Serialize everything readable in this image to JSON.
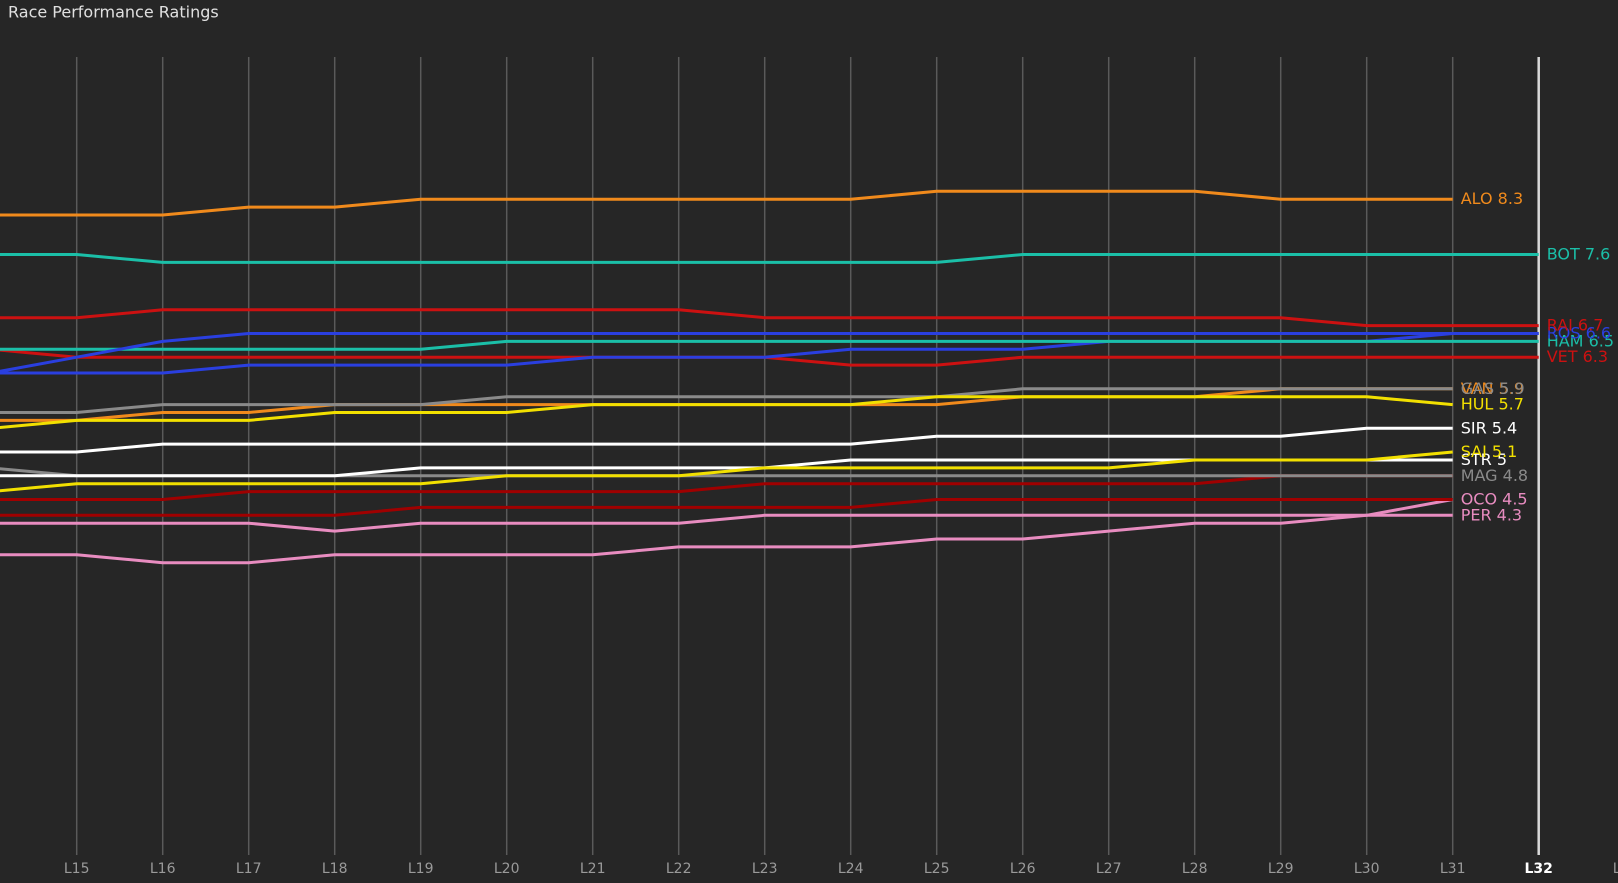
{
  "chart_data": {
    "type": "line",
    "title": "Race Performance Ratings",
    "categories": [
      null,
      "L15",
      "L16",
      "L17",
      "L18",
      "L19",
      "L20",
      "L21",
      "L22",
      "L23",
      "L24",
      "L25",
      "L26",
      "L27",
      "L28",
      "L29",
      "L30",
      "L31",
      "L32",
      "L"
    ],
    "highlight_category": "L32",
    "ylim": [
      0,
      10.1
    ],
    "grid": true,
    "series": [
      {
        "name": "PER",
        "color": "#e88cc0",
        "values": [
          4.2,
          4.2,
          4.2,
          4.2,
          4.1,
          4.2,
          4.2,
          4.2,
          4.2,
          4.3,
          4.3,
          4.3,
          4.3,
          4.3,
          4.3,
          4.3,
          4.3,
          4.3,
          null,
          null
        ]
      },
      {
        "name": "OCO",
        "color": "#e88cc0",
        "values": [
          3.8,
          3.8,
          3.7,
          3.7,
          3.8,
          3.8,
          3.8,
          3.8,
          3.9,
          3.9,
          3.9,
          4.0,
          4.0,
          4.1,
          4.2,
          4.2,
          4.3,
          4.5,
          null,
          null
        ]
      },
      {
        "color": "#a00000",
        "values": [
          4.3,
          4.3,
          4.3,
          4.3,
          4.3,
          4.4,
          4.4,
          4.4,
          4.4,
          4.4,
          4.4,
          4.5,
          4.5,
          4.5,
          4.5,
          4.5,
          4.5,
          4.5,
          null,
          null
        ]
      },
      {
        "color": "#a00000",
        "values": [
          4.5,
          4.5,
          4.5,
          4.6,
          4.6,
          4.6,
          4.6,
          4.6,
          4.6,
          4.7,
          4.7,
          4.7,
          4.7,
          4.7,
          4.7,
          4.8,
          4.8,
          4.8,
          null,
          null
        ]
      },
      {
        "name": "MAG",
        "color": "#8a8a8a",
        "values": [
          4.9,
          4.8,
          4.8,
          4.8,
          4.8,
          4.8,
          4.8,
          4.8,
          4.8,
          4.8,
          4.8,
          4.8,
          4.8,
          4.8,
          4.8,
          4.8,
          4.8,
          4.8,
          null,
          null
        ]
      },
      {
        "name": "STR",
        "color": "#ffffff",
        "values": [
          4.8,
          4.8,
          4.8,
          4.8,
          4.8,
          4.9,
          4.9,
          4.9,
          4.9,
          4.9,
          5,
          5,
          5,
          5,
          5,
          5,
          5,
          5,
          null,
          null
        ]
      },
      {
        "name": "SAI",
        "color": "#f2e000",
        "values": [
          4.6,
          4.7,
          4.7,
          4.7,
          4.7,
          4.7,
          4.8,
          4.8,
          4.8,
          4.9,
          4.9,
          4.9,
          4.9,
          4.9,
          5,
          5,
          5,
          5.1,
          null,
          null
        ]
      },
      {
        "name": "SIR",
        "color": "#ffffff",
        "values": [
          5.1,
          5.1,
          5.2,
          5.2,
          5.2,
          5.2,
          5.2,
          5.2,
          5.2,
          5.2,
          5.2,
          5.3,
          5.3,
          5.3,
          5.3,
          5.3,
          5.4,
          5.4,
          null,
          null
        ]
      },
      {
        "name": "VAN",
        "color": "#f08a1c",
        "values": [
          5.5,
          5.5,
          5.6,
          5.6,
          5.7,
          5.7,
          5.7,
          5.7,
          5.7,
          5.7,
          5.7,
          5.7,
          5.8,
          5.8,
          5.8,
          5.9,
          5.9,
          5.9,
          null,
          null
        ]
      },
      {
        "name": "GAS",
        "color": "#8a8a8a",
        "values": [
          5.6,
          5.6,
          5.7,
          5.7,
          5.7,
          5.7,
          5.8,
          5.8,
          5.8,
          5.8,
          5.8,
          5.8,
          5.9,
          5.9,
          5.9,
          5.9,
          5.9,
          5.9,
          null,
          null
        ]
      },
      {
        "name": "HUL",
        "color": "#f2e000",
        "values": [
          5.4,
          5.5,
          5.5,
          5.5,
          5.6,
          5.6,
          5.6,
          5.7,
          5.7,
          5.7,
          5.7,
          5.8,
          5.8,
          5.8,
          5.8,
          5.8,
          5.8,
          5.7,
          null,
          null
        ]
      },
      {
        "name": "VET",
        "color": "#cc1111",
        "values": [
          6.4,
          6.3,
          6.3,
          6.3,
          6.3,
          6.3,
          6.3,
          6.3,
          6.3,
          6.3,
          6.2,
          6.2,
          6.3,
          6.3,
          6.3,
          6.3,
          6.3,
          6.3,
          6.3,
          null
        ]
      },
      {
        "color": "#2a3fe0",
        "values": [
          6.1,
          6.1,
          6.1,
          6.2,
          6.2,
          6.2,
          6.2,
          6.3,
          6.3,
          6.3,
          6.4,
          6.4,
          6.4,
          6.5,
          6.5,
          6.5,
          6.5,
          6.6,
          6.6,
          null
        ]
      },
      {
        "name": "HAM",
        "color": "#1bbfa8",
        "values": [
          6.4,
          6.4,
          6.4,
          6.4,
          6.4,
          6.4,
          6.5,
          6.5,
          6.5,
          6.5,
          6.5,
          6.5,
          6.5,
          6.5,
          6.5,
          6.5,
          6.5,
          6.5,
          6.5,
          null
        ]
      },
      {
        "name": "ROS",
        "color": "#2a3fe0",
        "values": [
          6.1,
          6.3,
          6.5,
          6.6,
          6.6,
          6.6,
          6.6,
          6.6,
          6.6,
          6.6,
          6.6,
          6.6,
          6.6,
          6.6,
          6.6,
          6.6,
          6.6,
          6.6,
          6.6,
          null
        ]
      },
      {
        "name": "RAI",
        "color": "#cc1111",
        "values": [
          6.8,
          6.8,
          6.9,
          6.9,
          6.9,
          6.9,
          6.9,
          6.9,
          6.9,
          6.8,
          6.8,
          6.8,
          6.8,
          6.8,
          6.8,
          6.8,
          6.7,
          6.7,
          6.7,
          null
        ]
      },
      {
        "name": "BOT",
        "color": "#1bbfa8",
        "values": [
          7.6,
          7.6,
          7.5,
          7.5,
          7.5,
          7.5,
          7.5,
          7.5,
          7.5,
          7.5,
          7.5,
          7.5,
          7.6,
          7.6,
          7.6,
          7.6,
          7.6,
          7.6,
          7.6,
          null
        ]
      },
      {
        "name": "ALO",
        "color": "#f08a1c",
        "values": [
          8.1,
          8.1,
          8.1,
          8.2,
          8.2,
          8.3,
          8.3,
          8.3,
          8.3,
          8.3,
          8.3,
          8.4,
          8.4,
          8.4,
          8.4,
          8.3,
          8.3,
          8.3,
          null,
          null
        ]
      }
    ]
  }
}
